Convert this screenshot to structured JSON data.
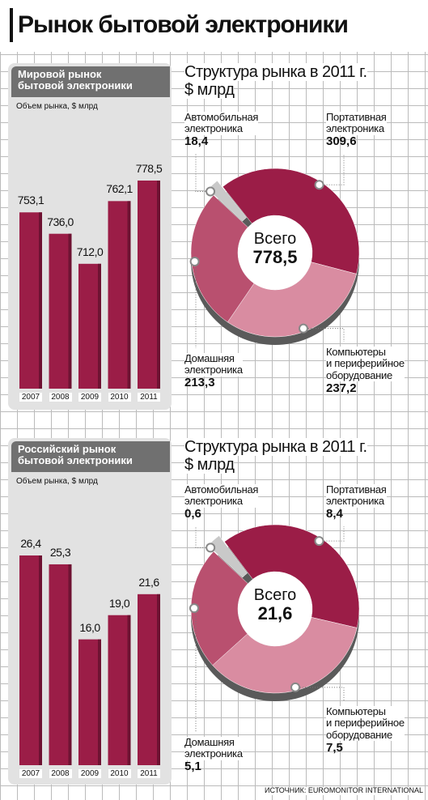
{
  "title": "Рынок бытовой электроники",
  "source": "ИСТОЧНИК: EUROMONITOR INTERNATIONAL",
  "chart_data": [
    {
      "type": "bar",
      "title": "Мировой рынок\nбытовой электроники",
      "subtitle": "Объем рынка, $ млрд",
      "categories": [
        "2007",
        "2008",
        "2009",
        "2010",
        "2011"
      ],
      "values": [
        753.1,
        736.0,
        712.0,
        762.1,
        778.5
      ],
      "value_labels": [
        "753,1",
        "736,0",
        "712,0",
        "762,1",
        "778,5"
      ],
      "color": "#9b1d47"
    },
    {
      "type": "donut",
      "title": "Структура рынка в 2011 г.",
      "subtitle": "$ млрд",
      "categories": [
        "Автомобильная\nэлектроника",
        "Портативная\nэлектроника",
        "Компьютеры\nи периферийное\nоборудование",
        "Домашняя\nэлектроника"
      ],
      "values": [
        18.4,
        309.6,
        237.2,
        213.3
      ],
      "value_labels": [
        "18,4",
        "309,6",
        "237,2",
        "213,3"
      ],
      "colors": [
        "#c9c9c9",
        "#9b1d47",
        "#d98ca1",
        "#b9506f"
      ],
      "center_label": "Всего",
      "total": 778.5,
      "total_value_label": "778,5"
    },
    {
      "type": "bar",
      "title": "Российский рынок\nбытовой электроники",
      "subtitle": "Объем рынка, $ млрд",
      "categories": [
        "2007",
        "2008",
        "2009",
        "2010",
        "2011"
      ],
      "values": [
        26.4,
        25.3,
        16.0,
        19.0,
        21.6
      ],
      "value_labels": [
        "26,4",
        "25,3",
        "16,0",
        "19,0",
        "21,6"
      ],
      "color": "#9b1d47"
    },
    {
      "type": "donut",
      "title": "Структура рынка в 2011 г.",
      "subtitle": "$ млрд",
      "categories": [
        "Автомобильная\nэлектроника",
        "Портативная\nэлектроника",
        "Компьютеры\nи периферийное\nоборудование",
        "Домашняя\nэлектроника"
      ],
      "values": [
        0.6,
        8.4,
        7.5,
        5.1
      ],
      "value_labels": [
        "0,6",
        "8,4",
        "7,5",
        "5,1"
      ],
      "colors": [
        "#c9c9c9",
        "#9b1d47",
        "#d98ca1",
        "#b9506f"
      ],
      "center_label": "Всего",
      "total": 21.6,
      "total_value_label": "21,6"
    }
  ]
}
